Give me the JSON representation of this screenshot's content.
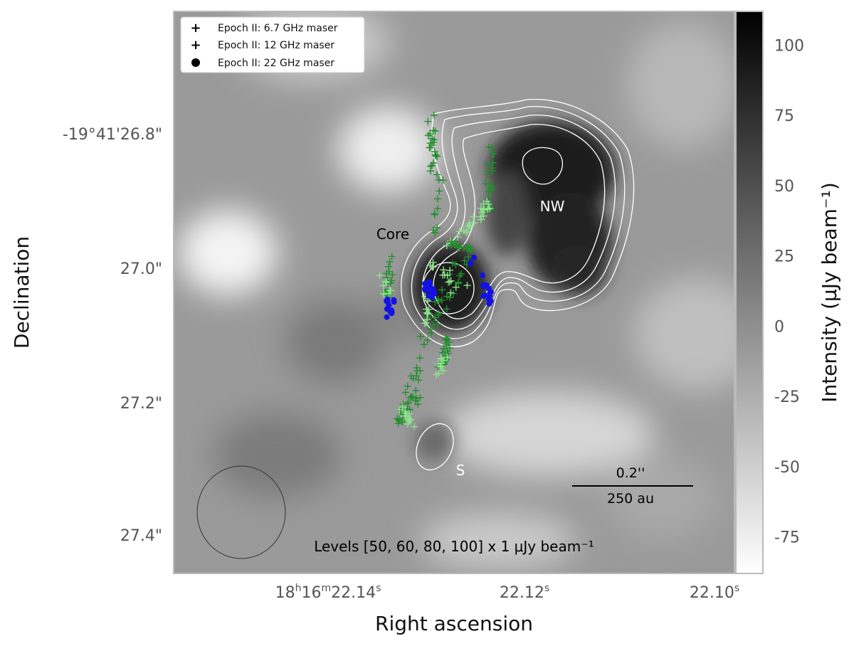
{
  "chart_data": {
    "type": "heatmap",
    "title": "",
    "xlabel": "Right ascension",
    "ylabel": "Declination",
    "x_ticks": [
      {
        "main": "18",
        "sup1": "h",
        "main2": "16",
        "sup2": "m",
        "main3": "22.14",
        "sup3": "s"
      },
      {
        "main": "22.12",
        "sup3": "s"
      },
      {
        "main": "22.10",
        "sup3": "s"
      }
    ],
    "y_ticks": [
      "-19°41'26.8\"",
      "27.0\"",
      "27.2\"",
      "27.4\""
    ],
    "colorbar": {
      "label": "Intensity (μJy beam⁻¹)",
      "ticks": [
        100,
        75,
        50,
        25,
        0,
        -25,
        -50,
        -75
      ],
      "range": [
        -88,
        112
      ],
      "colormap": "grayscale"
    },
    "legend": {
      "placement": "top-left",
      "entries": [
        {
          "label": "Epoch II: 6.7 GHz maser",
          "marker": "plus",
          "color": "#000000"
        },
        {
          "label": "Epoch II: 12 GHz maser",
          "marker": "plus",
          "color": "#000000"
        },
        {
          "label": "Epoch II: 22 GHz maser",
          "marker": "circle",
          "color": "#000000"
        }
      ]
    },
    "contour_levels_text": "Levels [50, 60, 80, 100] x 1 μJy beam⁻¹",
    "annotations": [
      "Core",
      "NW",
      "S"
    ],
    "scalebar": {
      "top": "0.2''",
      "bottom": "250 au"
    },
    "series": [
      {
        "marker": "plus",
        "color": "#1f8f2a"
      },
      {
        "marker": "plus",
        "color": "#8fe08f"
      },
      {
        "marker": "circle",
        "color": "#1212e6"
      }
    ],
    "grid": false
  }
}
